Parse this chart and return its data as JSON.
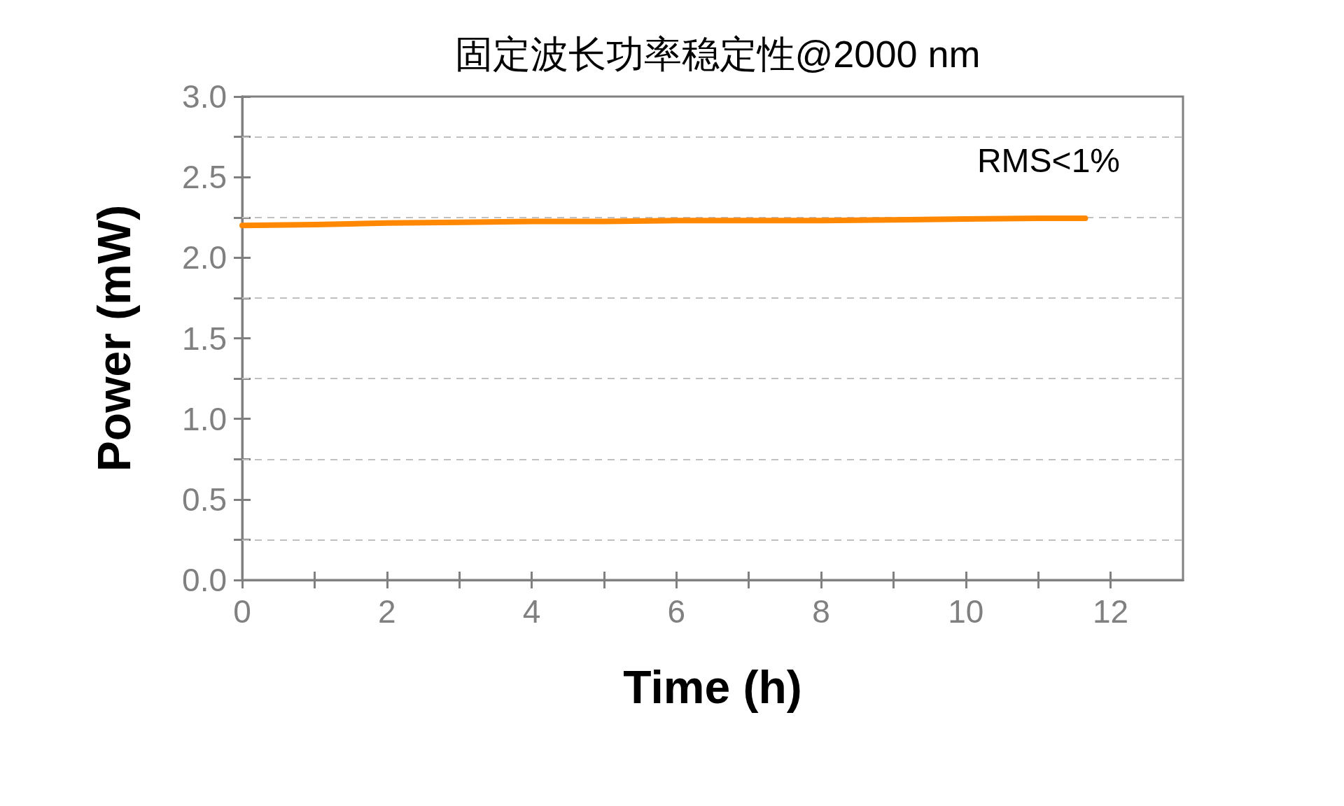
{
  "chart_data": {
    "type": "line",
    "title": "固定波长功率稳定性@2000 nm",
    "xlabel": "Time (h)",
    "ylabel": "Power (mW)",
    "annotations": [
      "RMS<1%"
    ],
    "x": [
      0,
      1,
      2,
      3,
      4,
      5,
      6,
      7,
      8,
      9,
      10,
      11,
      11.65
    ],
    "series": [
      {
        "color": "#ff8800",
        "values": [
          2.2,
          2.205,
          2.215,
          2.22,
          2.225,
          2.225,
          2.23,
          2.23,
          2.23,
          2.235,
          2.24,
          2.245,
          2.245
        ]
      }
    ],
    "xlim": [
      0,
      13
    ],
    "xticks": [
      0,
      {
        "value": 1,
        "label": null
      },
      2,
      {
        "value": 3,
        "label": null
      },
      4,
      {
        "value": 5,
        "label": null
      },
      6,
      {
        "value": 7,
        "label": null
      },
      8,
      {
        "value": 9,
        "label": null
      },
      10,
      {
        "value": 11,
        "label": null
      },
      12
    ],
    "ylim": [
      0,
      3
    ],
    "yticks": [
      {
        "value": 0,
        "label": "0.0"
      },
      {
        "value": 0.25,
        "label": null
      },
      {
        "value": 0.5,
        "label": "0.5"
      },
      {
        "value": 0.75,
        "label": null
      },
      {
        "value": 1,
        "label": "1.0"
      },
      {
        "value": 1.25,
        "label": null
      },
      {
        "value": 1.5,
        "label": "1.5"
      },
      {
        "value": 1.75,
        "label": null
      },
      {
        "value": 2,
        "label": "2.0"
      },
      {
        "value": 2.25,
        "label": null
      },
      {
        "value": 2.5,
        "label": "2.5"
      },
      {
        "value": 2.75,
        "label": null
      },
      {
        "value": 3,
        "label": "3.0"
      }
    ],
    "grid": "y",
    "line_style": "solid"
  }
}
